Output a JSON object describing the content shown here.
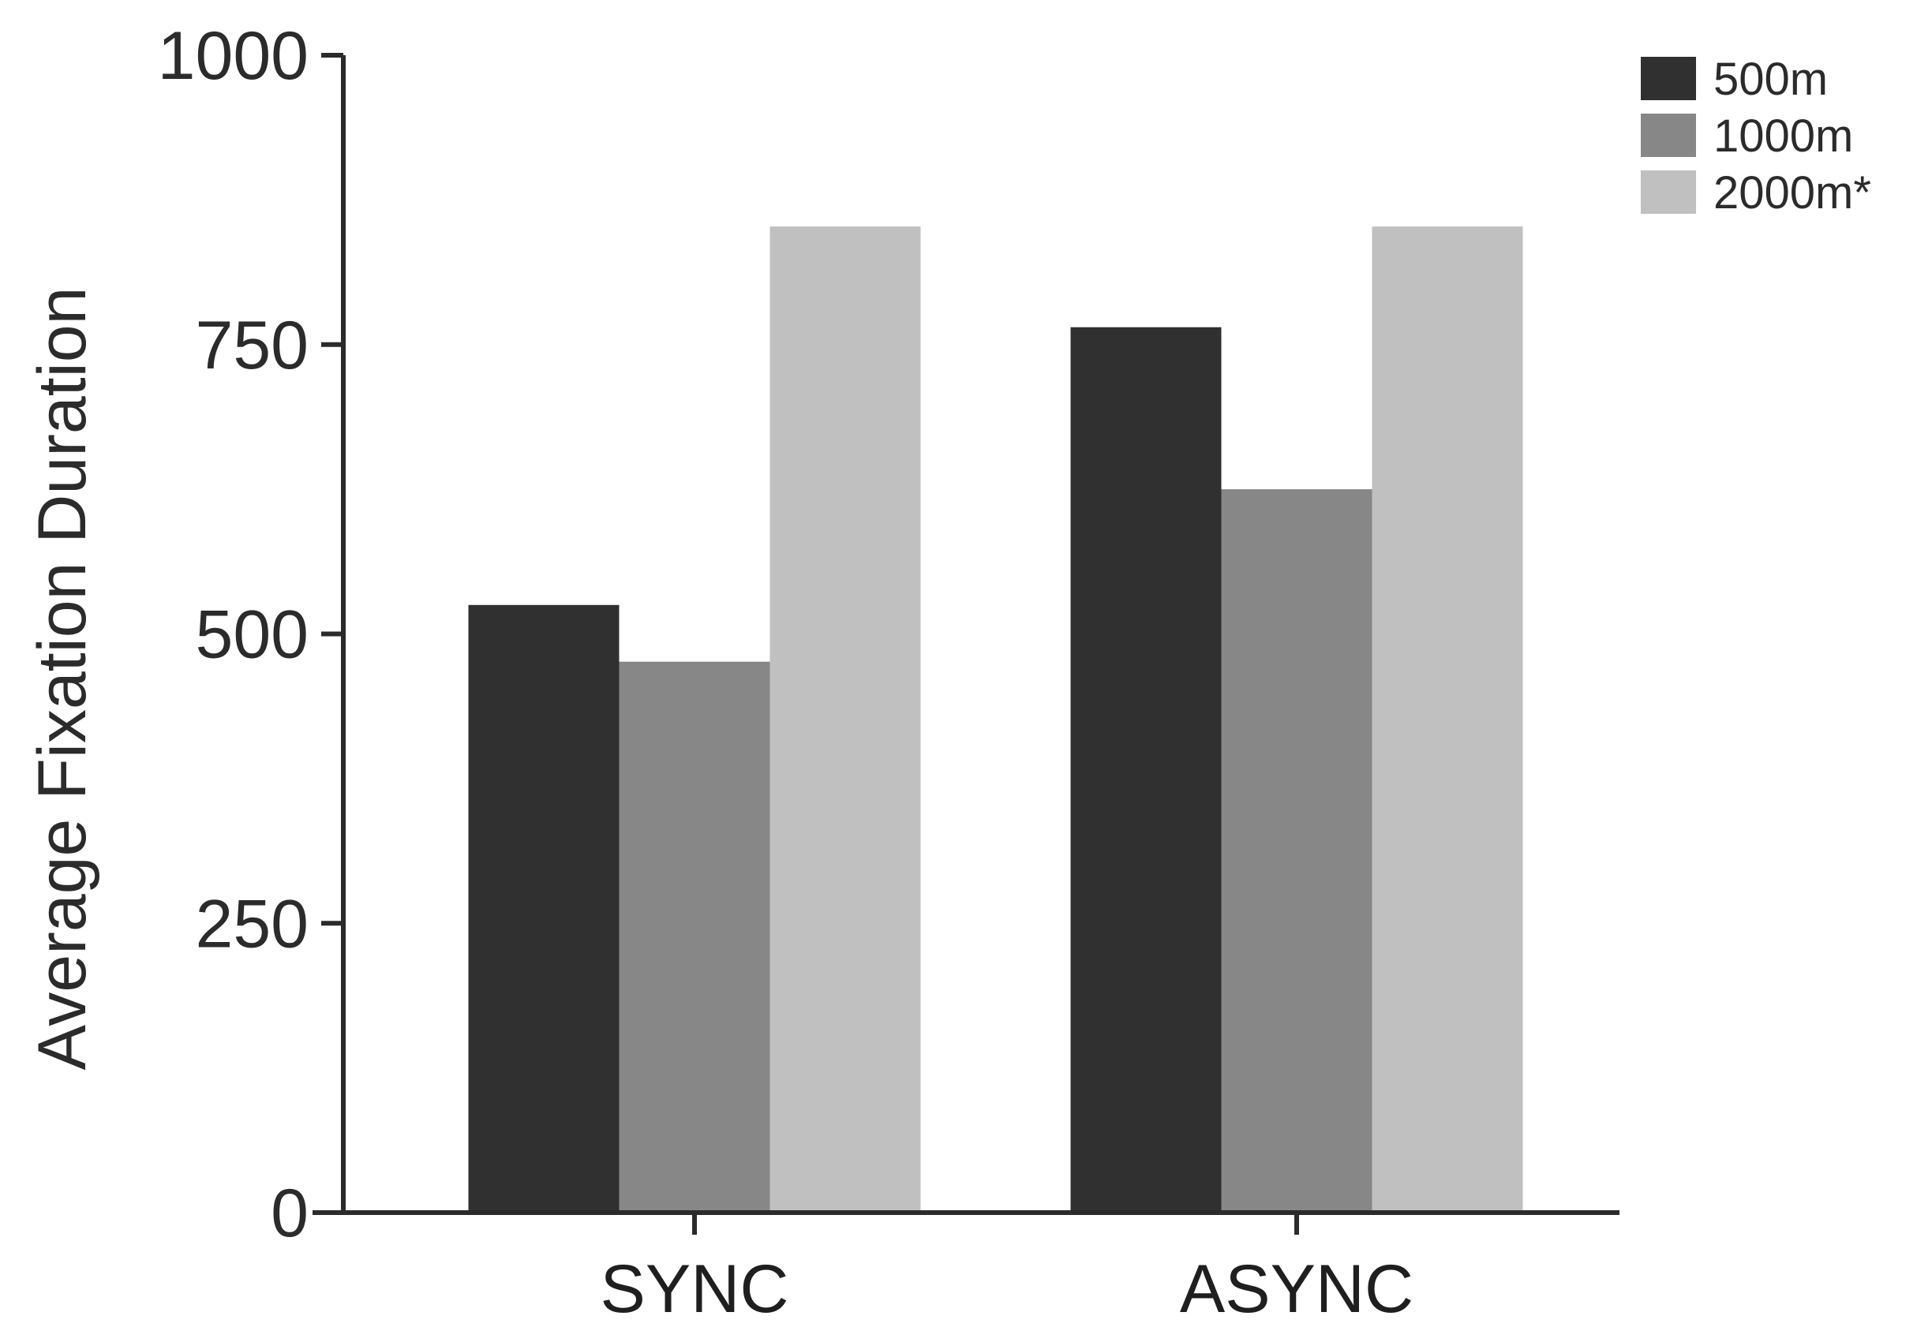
{
  "chart_data": {
    "type": "bar",
    "categories": [
      "SYNC",
      "ASYNC"
    ],
    "series": [
      {
        "name": "500m",
        "values": [
          525,
          765
        ],
        "color": "#303030"
      },
      {
        "name": "1000m",
        "values": [
          476,
          625
        ],
        "color": "#878787"
      },
      {
        "name": "2000m*",
        "values": [
          852,
          852
        ],
        "color": "#c0c0c0"
      }
    ],
    "title": "",
    "xlabel": "",
    "ylabel": "Average Fixation Duration",
    "ylim": [
      0,
      1000
    ],
    "yticks": [
      0,
      250,
      500,
      750,
      1000
    ],
    "legend_position": "top-right",
    "grid": false,
    "axis_color": "#2b2b2b"
  }
}
